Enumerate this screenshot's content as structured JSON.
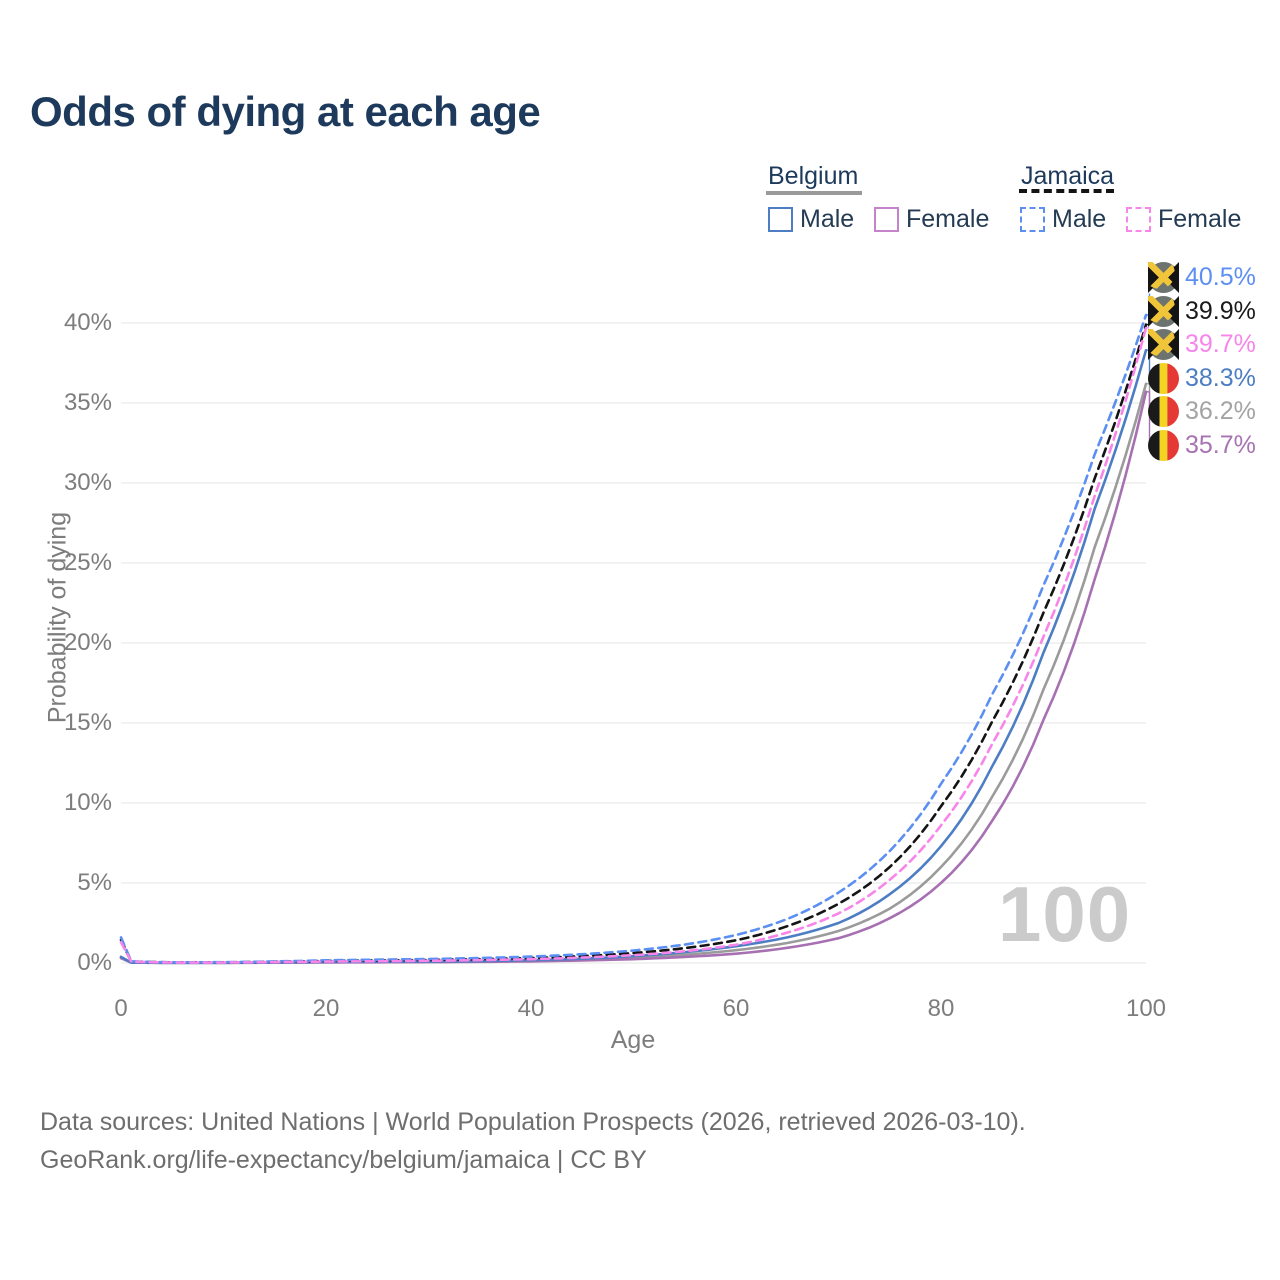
{
  "title": "Odds of dying at each age",
  "legend": {
    "groups": [
      {
        "name": "Belgium",
        "line_style": "solid",
        "underline_color": "#9a9a9a",
        "items": [
          {
            "label": "Male",
            "color": "#4d7dc3",
            "dash": false
          },
          {
            "label": "Female",
            "color": "#c583c9",
            "dash": false
          }
        ]
      },
      {
        "name": "Jamaica",
        "line_style": "dashed",
        "underline_color": "#141414",
        "items": [
          {
            "label": "Male",
            "color": "#5b8ff2",
            "dash": true
          },
          {
            "label": "Female",
            "color": "#f785ea",
            "dash": true
          }
        ]
      }
    ]
  },
  "chart_data": {
    "type": "line",
    "title": "Odds of dying at each age",
    "xlabel": "Age",
    "ylabel": "Probability of dying",
    "xlim": [
      0,
      100
    ],
    "ylim_percent": [
      0,
      43
    ],
    "grid": true,
    "x_ticks": [
      0,
      20,
      40,
      60,
      80,
      100
    ],
    "y_ticks_percent": [
      0,
      5,
      10,
      15,
      20,
      25,
      30,
      35,
      40
    ],
    "y_tick_labels": [
      "0%",
      "5%",
      "10%",
      "15%",
      "20%",
      "25%",
      "30%",
      "35%",
      "40%"
    ],
    "watermark": "100",
    "ages": [
      0,
      1,
      5,
      10,
      15,
      20,
      25,
      30,
      35,
      40,
      45,
      50,
      55,
      60,
      65,
      70,
      75,
      80,
      85,
      90,
      95,
      100
    ],
    "series": [
      {
        "name": "Jamaica Male",
        "country": "Jamaica",
        "flag": "jamaica",
        "color": "#5b8ff2",
        "dash": true,
        "end_label": "40.5%",
        "end_label_color": "#5b8ff2",
        "values": [
          1.6,
          0.1,
          0.04,
          0.05,
          0.1,
          0.17,
          0.21,
          0.25,
          0.31,
          0.4,
          0.55,
          0.78,
          1.15,
          1.75,
          2.75,
          4.4,
          7.0,
          11.2,
          16.8,
          23.6,
          31.8,
          40.5
        ]
      },
      {
        "name": "Jamaica (both sexes)",
        "country": "Jamaica",
        "flag": "jamaica",
        "color": "#141414",
        "dash": true,
        "end_label": "39.9%",
        "end_label_color": "#1a1a1a",
        "values": [
          1.45,
          0.09,
          0.04,
          0.04,
          0.08,
          0.13,
          0.16,
          0.19,
          0.24,
          0.31,
          0.43,
          0.62,
          0.93,
          1.42,
          2.3,
          3.7,
          6.0,
          9.8,
          15.1,
          21.9,
          30.3,
          39.9
        ]
      },
      {
        "name": "Jamaica Female",
        "country": "Jamaica",
        "flag": "jamaica",
        "color": "#f785ea",
        "dash": true,
        "end_label": "39.7%",
        "end_label_color": "#f785ea",
        "values": [
          1.3,
          0.08,
          0.03,
          0.03,
          0.06,
          0.09,
          0.11,
          0.14,
          0.18,
          0.24,
          0.34,
          0.49,
          0.74,
          1.14,
          1.9,
          3.1,
          5.2,
          8.6,
          13.7,
          20.4,
          29.2,
          39.7
        ]
      },
      {
        "name": "Belgium Male",
        "country": "Belgium",
        "flag": "belgium",
        "color": "#4d7dc3",
        "dash": false,
        "end_label": "38.3%",
        "end_label_color": "#4d7dc3",
        "values": [
          0.38,
          0.03,
          0.01,
          0.012,
          0.04,
          0.07,
          0.08,
          0.09,
          0.12,
          0.18,
          0.27,
          0.43,
          0.68,
          1.05,
          1.6,
          2.5,
          4.3,
          7.3,
          12.3,
          19.4,
          28.4,
          38.3
        ]
      },
      {
        "name": "Belgium (both sexes)",
        "country": "Belgium",
        "flag": "belgium",
        "color": "#9b9b9b",
        "dash": false,
        "end_label": "36.2%",
        "end_label_color": "#a3a3a3",
        "values": [
          0.34,
          0.025,
          0.009,
          0.01,
          0.03,
          0.05,
          0.06,
          0.07,
          0.09,
          0.14,
          0.21,
          0.33,
          0.52,
          0.8,
          1.25,
          2.0,
          3.4,
          6.0,
          10.4,
          17.1,
          26.0,
          36.2
        ]
      },
      {
        "name": "Belgium Female",
        "country": "Belgium",
        "flag": "belgium",
        "color": "#a770b2",
        "dash": false,
        "end_label": "35.7%",
        "end_label_color": "#a873b3",
        "values": [
          0.3,
          0.02,
          0.008,
          0.009,
          0.02,
          0.035,
          0.045,
          0.055,
          0.07,
          0.1,
          0.16,
          0.24,
          0.38,
          0.58,
          0.95,
          1.55,
          2.8,
          5.0,
          8.9,
          15.2,
          24.0,
          35.7
        ]
      }
    ],
    "legend_position": "top-right"
  },
  "flag_colors": {
    "jamaica_green": "#6d746f",
    "jamaica_black": "#141414",
    "jamaica_gold": "#f0c53a",
    "belgium_black": "#1a1a1a",
    "belgium_yellow": "#f5d321",
    "belgium_red": "#e53935"
  },
  "grid_color": "#ededed",
  "footer": {
    "line1": "Data sources: United Nations | World Population Prospects (2026, retrieved 2026-03-10).",
    "line2": "GeoRank.org/life-expectancy/belgium/jamaica | CC BY"
  }
}
